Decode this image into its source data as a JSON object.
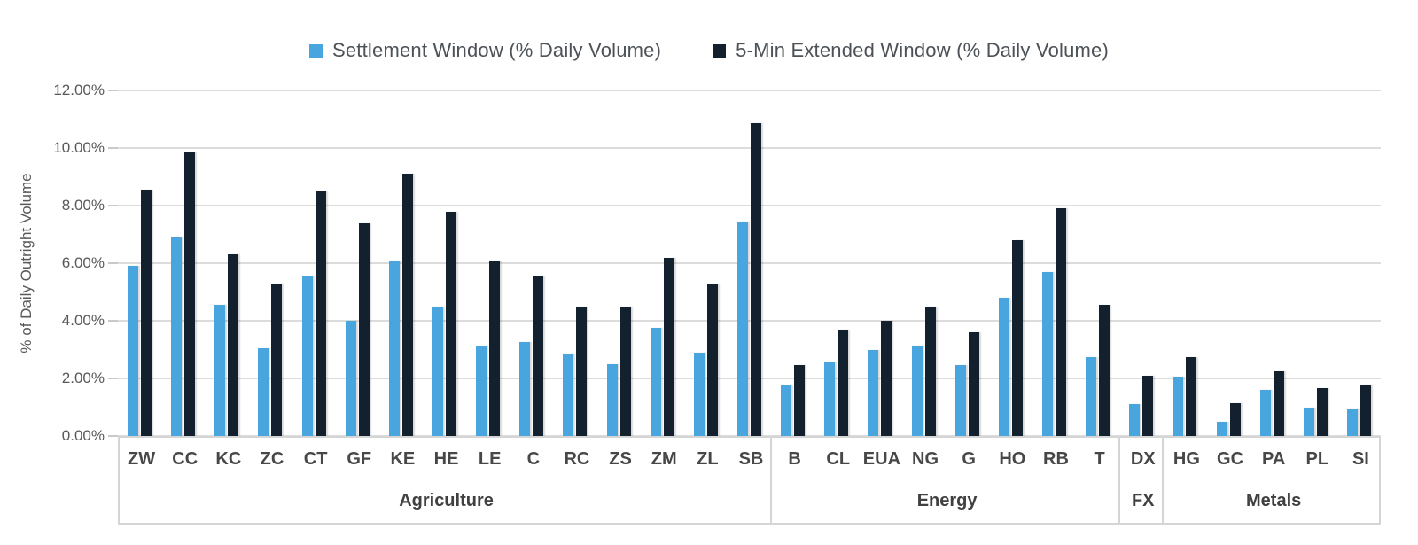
{
  "legend": [
    {
      "label": "Settlement Window (% Daily Volume)",
      "color": "#49A5DD"
    },
    {
      "label": "5-Min Extended Window (% Daily Volume)",
      "color": "#13202E"
    }
  ],
  "y_axis": {
    "title": "% of Daily Outright Volume",
    "ticks": [
      "0.00%",
      "2.00%",
      "4.00%",
      "6.00%",
      "8.00%",
      "10.00%",
      "12.00%"
    ]
  },
  "colors": {
    "settlement_blue": "#49A5DD",
    "extended_navy": "#13202E",
    "gridline": "#dcdcdc",
    "axis_box_border": "#d5d5d5"
  },
  "chart_data": {
    "type": "bar",
    "title": "",
    "xlabel": "",
    "ylabel": "% of Daily Outright Volume",
    "ylim": [
      0,
      12
    ],
    "y_tick_step": 2,
    "y_tick_format": "percent_2dp",
    "grid": true,
    "legend_position": "top-center",
    "categories": [
      "ZW",
      "CC",
      "KC",
      "ZC",
      "CT",
      "GF",
      "KE",
      "HE",
      "LE",
      "C",
      "RC",
      "ZS",
      "ZM",
      "ZL",
      "SB",
      "B",
      "CL",
      "EUA",
      "NG",
      "G",
      "HO",
      "RB",
      "T",
      "DX",
      "HG",
      "GC",
      "PA",
      "PL",
      "SI"
    ],
    "groups": [
      {
        "label": "Agriculture",
        "count": 15
      },
      {
        "label": "Energy",
        "count": 8
      },
      {
        "label": "FX",
        "count": 1
      },
      {
        "label": "Metals",
        "count": 5
      }
    ],
    "series": [
      {
        "name": "Settlement Window (% Daily Volume)",
        "color": "#49A5DD",
        "values": [
          5.9,
          6.9,
          4.55,
          3.05,
          5.55,
          4.0,
          6.1,
          4.5,
          3.1,
          3.25,
          2.85,
          2.5,
          3.75,
          2.9,
          7.45,
          1.75,
          2.55,
          3.0,
          3.15,
          2.45,
          4.8,
          5.7,
          2.75,
          1.1,
          2.05,
          0.5,
          1.6,
          1.0,
          0.95
        ]
      },
      {
        "name": "5-Min Extended Window (% Daily Volume)",
        "color": "#13202E",
        "values": [
          8.55,
          9.85,
          6.3,
          5.3,
          8.5,
          7.4,
          9.1,
          7.8,
          6.1,
          5.55,
          4.5,
          4.5,
          6.2,
          5.25,
          10.85,
          2.45,
          3.7,
          4.0,
          4.5,
          3.6,
          6.8,
          7.9,
          4.55,
          2.1,
          2.75,
          1.15,
          2.25,
          1.65,
          1.8
        ]
      }
    ]
  }
}
